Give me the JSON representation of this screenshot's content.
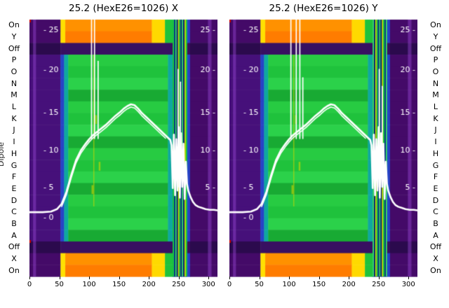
{
  "chart_data": {
    "type": "heatmap",
    "ylabel": "Dipole",
    "row_labels": [
      "On",
      "Y",
      "Off",
      "P",
      "O",
      "N",
      "M",
      "L",
      "K",
      "J",
      "I",
      "H",
      "G",
      "F",
      "E",
      "D",
      "C",
      "B",
      "A",
      "Off",
      "X",
      "On"
    ],
    "row_kinds": [
      "hot",
      "hot",
      "off",
      "main",
      "main",
      "main",
      "main",
      "main",
      "main",
      "main",
      "main",
      "main",
      "main",
      "main",
      "main",
      "main",
      "main",
      "main",
      "main",
      "off",
      "hot",
      "hot"
    ],
    "x_ticks": [
      0,
      50,
      100,
      150,
      200,
      250,
      300
    ],
    "x_range": [
      0,
      315
    ],
    "inner_y_ticks_left": [
      25,
      20,
      15,
      10,
      5,
      0
    ],
    "inner_y_ticks_right": [
      25,
      20,
      15,
      10,
      5
    ],
    "y_anchors": [
      [
        25,
        42
      ],
      [
        20,
        99
      ],
      [
        15,
        160
      ],
      [
        10,
        214
      ],
      [
        5,
        267
      ],
      [
        0,
        310
      ]
    ],
    "plots": [
      {
        "title": "25.2 (HexE26=1026) X",
        "spikes": [
          [
            104,
            27
          ],
          [
            109,
            28.5
          ],
          [
            115,
            21
          ],
          [
            249,
            20
          ],
          [
            253,
            18.5
          ]
        ],
        "stripe_seed": 0
      },
      {
        "title": "25.2 (HexE26=1026) Y",
        "spikes": [
          [
            103,
            27
          ],
          [
            112,
            28.5
          ],
          [
            118,
            27.5
          ],
          [
            123,
            19
          ],
          [
            251,
            20
          ],
          [
            256,
            18
          ]
        ],
        "stripe_seed": 2
      }
    ],
    "segments": {
      "hot": [
        [
          0,
          52,
          "#440a68"
        ],
        [
          52,
          60,
          "#ffe000"
        ],
        [
          60,
          205,
          "ORANGE"
        ],
        [
          205,
          227,
          "#ffd900"
        ],
        [
          227,
          240,
          "#1fc23c"
        ],
        [
          240,
          263,
          "STRIPE"
        ],
        [
          263,
          269,
          "#2743c7"
        ],
        [
          269,
          315,
          "#440a68"
        ]
      ],
      "main": [
        [
          0,
          52,
          "#46107a"
        ],
        [
          52,
          58,
          "#2743c7"
        ],
        [
          58,
          65,
          "#0fa7a0"
        ],
        [
          65,
          232,
          "GREEN"
        ],
        [
          232,
          240,
          "#0fa7a0"
        ],
        [
          240,
          263,
          "STRIPE"
        ],
        [
          263,
          269,
          "#2743c7"
        ],
        [
          269,
          315,
          "#440a68"
        ]
      ],
      "off": [
        [
          0,
          52,
          "#2b0a4d"
        ],
        [
          52,
          240,
          "#381061"
        ],
        [
          240,
          263,
          "STRIPE"
        ],
        [
          263,
          269,
          "#381061"
        ],
        [
          269,
          315,
          "#2b0a4d"
        ]
      ]
    },
    "greens": [
      "#1fc23c",
      "#2bd14a",
      "#18aa33",
      "#27cb42"
    ],
    "oranges": [
      "#ff9100",
      "#ff7c00"
    ],
    "stripe_colors": [
      "#18d03c",
      "#0a2f85",
      "#39e065",
      "#0a1f70",
      "#c8e000"
    ],
    "stripe_base": "#0a2f85",
    "purple_streaks": {
      "color": "rgba(150,70,210,0.45)",
      "bands": [
        [
          6,
          11
        ],
        [
          299,
          305
        ]
      ]
    },
    "yellow_marks": {
      "line_x": 107,
      "color": "rgba(210,215,0,0.6)",
      "flecks": [
        [
          110,
          8
        ],
        [
          116,
          12
        ],
        [
          104,
          14
        ]
      ]
    },
    "accent_red": "#cc0000",
    "curve_color": "#ffffff",
    "curve": {
      "pre": [
        [
          0,
          0.8
        ],
        [
          22,
          0.8
        ],
        [
          36,
          0.9
        ],
        [
          46,
          1.3
        ],
        [
          54,
          2.2
        ],
        [
          62,
          4.2
        ],
        [
          70,
          6.6
        ],
        [
          78,
          8.6
        ],
        [
          86,
          9.9
        ],
        [
          94,
          10.8
        ],
        [
          100,
          11.4
        ],
        [
          106,
          11.9
        ],
        [
          112,
          12.3
        ],
        [
          120,
          12.8
        ],
        [
          128,
          13.3
        ],
        [
          136,
          13.9
        ],
        [
          144,
          14.5
        ],
        [
          152,
          15.0
        ],
        [
          158,
          15.4
        ],
        [
          164,
          15.7
        ],
        [
          170,
          15.9
        ],
        [
          176,
          15.8
        ],
        [
          182,
          15.4
        ],
        [
          188,
          14.9
        ],
        [
          196,
          14.3
        ],
        [
          204,
          13.7
        ],
        [
          212,
          13.1
        ],
        [
          220,
          12.5
        ],
        [
          228,
          11.9
        ],
        [
          236,
          11.3
        ]
      ],
      "noise": [
        [
          238,
          10.6
        ],
        [
          240,
          4.8
        ],
        [
          242,
          12.0
        ],
        [
          244,
          3.6
        ],
        [
          246,
          11.4
        ],
        [
          248,
          4.4
        ],
        [
          250,
          13.0
        ],
        [
          252,
          3.2
        ],
        [
          254,
          12.2
        ],
        [
          256,
          5.0
        ],
        [
          258,
          10.8
        ],
        [
          260,
          3.0
        ],
        [
          262,
          8.4
        ],
        [
          264,
          5.4
        ]
      ],
      "post": [
        [
          266,
          4.4
        ],
        [
          270,
          3.3
        ],
        [
          274,
          2.5
        ],
        [
          278,
          2.0
        ],
        [
          283,
          1.7
        ],
        [
          289,
          1.5
        ],
        [
          295,
          1.3
        ],
        [
          302,
          1.2
        ],
        [
          309,
          1.2
        ],
        [
          315,
          1.1
        ]
      ]
    }
  }
}
